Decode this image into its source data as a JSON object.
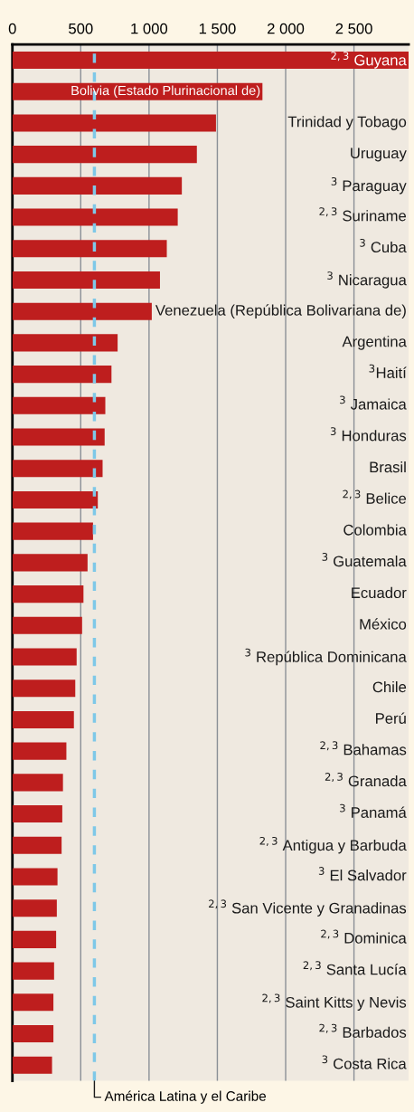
{
  "chart_data": {
    "type": "bar",
    "orientation": "horizontal",
    "categories": [
      "$^{2,3}$ Guyana",
      "Bolivia (Estado Plurinacional de)",
      "Trinidad y Tobago",
      "Uruguay",
      "$^{3}$ Paraguay",
      "$^{2,3}$ Suriname",
      "$^{3}$ Cuba",
      "$^{3}$ Nicaragua",
      "Venezuela (República Bolivariana de)",
      "Argentina",
      "$^{3}$Haití",
      "$^{3}$ Jamaica",
      "$^{3}$ Honduras",
      "Brasil",
      "$^{2,3}$ Belice",
      "Colombia",
      "$^{3}$ Guatemala",
      "Ecuador",
      "México",
      "$^{3}$ República Dominicana",
      "Chile",
      "Perú",
      "$^{2,3}$ Bahamas",
      "$^{2,3}$ Granada",
      "$^{3}$ Panamá",
      "$^{2,3}$ Antigua y Barbuda",
      "$^{3}$ El Salvador",
      "$^{2,3}$ San Vicente y Granadinas",
      "$^{2,3}$ Dominica",
      "$^{2,3}$ Santa Lucía",
      "$^{2,3}$ Saint Kitts y Nevis",
      "$^{2,3}$ Barbados",
      "$^{3}$ Costa Rica"
    ],
    "values": [
      2900,
      1830,
      1490,
      1350,
      1240,
      1210,
      1130,
      1080,
      1020,
      770,
      725,
      680,
      675,
      660,
      625,
      590,
      550,
      520,
      510,
      470,
      460,
      450,
      395,
      370,
      365,
      360,
      330,
      325,
      320,
      305,
      300,
      300,
      290
    ],
    "color": "#be1e1e",
    "xlim": [
      0,
      2900
    ],
    "xticks": [
      0,
      500,
      {
        "value": 1000,
        "label": "1 000"
      },
      {
        "value": 1500,
        "label": "1 500"
      },
      {
        "value": 2000,
        "label": "2 000"
      },
      {
        "value": 2500,
        "label": "2 500"
      }
    ],
    "grid": "x",
    "ref_lines": [
      {
        "axis": "x",
        "value": 600,
        "label": "América Latina y el Caribe",
        "color": "#7ec8e8",
        "line_style": "dashed"
      }
    ]
  }
}
